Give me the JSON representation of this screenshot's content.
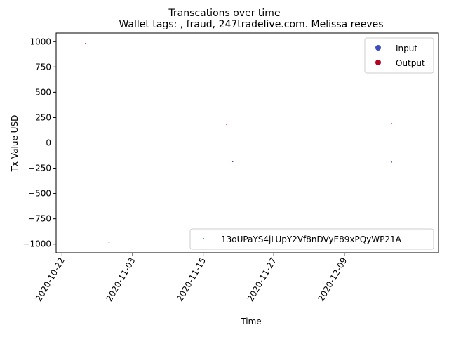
{
  "chart_data": {
    "type": "scatter",
    "title": "Transcations over time",
    "subtitle": "Wallet tags: , fraud, 247tradelive.com.   Melissa reeves",
    "xlabel": "Time",
    "ylabel": "Tx Value USD",
    "x_type": "date",
    "xlim": [
      "2020-10-21",
      "2020-12-25"
    ],
    "ylim": [
      -1085,
      1085
    ],
    "x_ticks": [
      "2020-10-22",
      "2020-11-03",
      "2020-11-15",
      "2020-11-27",
      "2020-12-09"
    ],
    "y_ticks": [
      1000,
      750,
      500,
      250,
      0,
      -250,
      -500,
      -750,
      -1000
    ],
    "y_tick_labels": [
      "1000",
      "750",
      "500",
      "250",
      "0",
      "−250",
      "−500",
      "−750",
      "−1000"
    ],
    "grid": false,
    "legend_top": {
      "placement": "top-right",
      "entries": [
        {
          "label": "Input",
          "color": "#3b4cc0"
        },
        {
          "label": "Output",
          "color": "#b40426"
        }
      ]
    },
    "legend_bottom": {
      "placement": "bottom-right",
      "entries": [
        {
          "label": "13oUPaYS4jLUpY2Vf8nDVyE89xPQyWP21A",
          "color": "#1f8a70"
        }
      ]
    },
    "series": [
      {
        "name": "13oUPaYS4jLUpY2Vf8nDVyE89xPQyWP21A",
        "color": "#1f8a70",
        "points": [
          {
            "x": "2020-10-26",
            "y": 980,
            "color": "#b40426"
          },
          {
            "x": "2020-10-30",
            "y": -980,
            "color": "#1f8a70"
          },
          {
            "x": "2020-11-19",
            "y": 185,
            "color": "#b40426"
          },
          {
            "x": "2020-11-20",
            "y": -185,
            "color": "#3b4cc0"
          },
          {
            "x": "2020-12-17",
            "y": 190,
            "color": "#b40426"
          },
          {
            "x": "2020-12-17",
            "y": -190,
            "color": "#3b4cc0"
          }
        ]
      }
    ]
  }
}
